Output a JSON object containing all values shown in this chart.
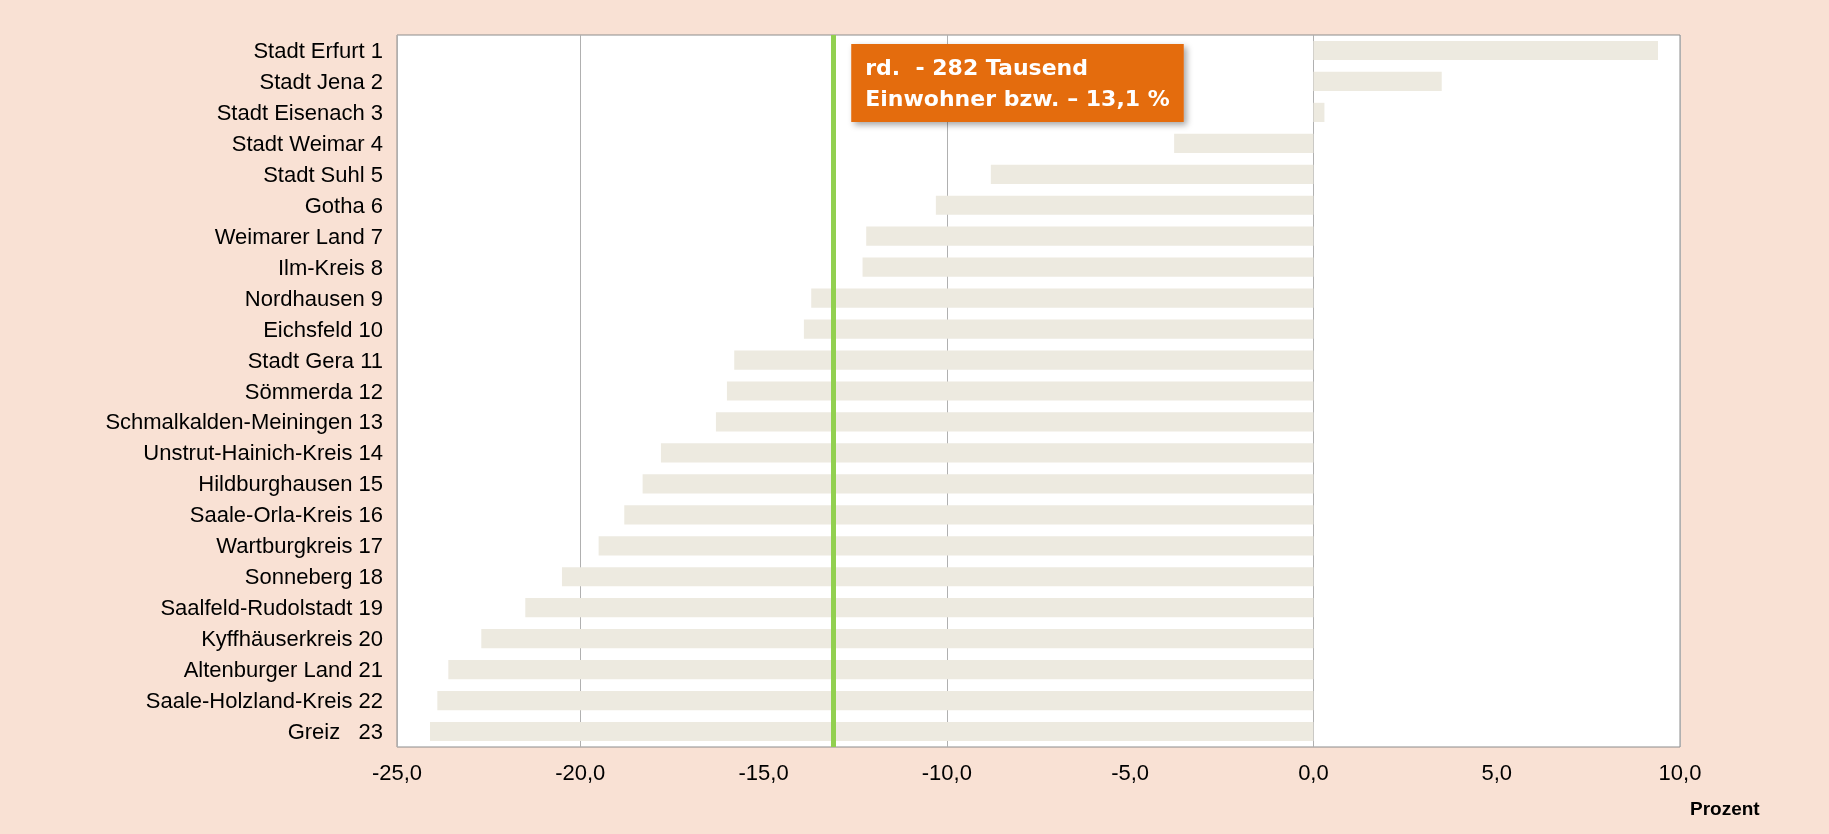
{
  "chart_data": {
    "type": "bar",
    "orientation": "horizontal",
    "categories": [
      "Stadt Erfurt 1",
      "Stadt Jena 2",
      "Stadt Eisenach 3",
      "Stadt Weimar 4",
      "Stadt Suhl 5",
      "Gotha 6",
      "Weimarer Land 7",
      "Ilm-Kreis 8",
      "Nordhausen 9",
      "Eichsfeld 10",
      "Stadt Gera 11",
      "Sömmerda 12",
      "Schmalkalden-Meiningen 13",
      "Unstrut-Hainich-Kreis 14",
      "Hildburghausen 15",
      "Saale-Orla-Kreis 16",
      "Wartburgkreis 17",
      "Sonneberg 18",
      "Saalfeld-Rudolstadt 19",
      "Kyffhäuserkreis 20",
      "Altenburger Land 21",
      "Saale-Holzland-Kreis 22",
      "Greiz   23"
    ],
    "values": [
      9.4,
      3.5,
      0.3,
      -3.8,
      -8.8,
      -10.3,
      -12.2,
      -12.3,
      -13.7,
      -13.9,
      -15.8,
      -16.0,
      -16.3,
      -17.8,
      -18.3,
      -18.8,
      -19.5,
      -20.5,
      -21.5,
      -22.7,
      -23.6,
      -23.9,
      -24.1
    ],
    "color": "#edeae0",
    "xlabel": "Prozent",
    "xlim": [
      -25,
      10
    ],
    "xticks": [
      {
        "value": -25,
        "label": "-25,0"
      },
      {
        "value": -20,
        "label": "-20,0"
      },
      {
        "value": -15,
        "label": "-15,0"
      },
      {
        "value": -10,
        "label": "-10,0"
      },
      {
        "value": -5,
        "label": "-5,0"
      },
      {
        "value": 0,
        "label": "0,0"
      },
      {
        "value": 5,
        "label": "5,0"
      },
      {
        "value": 10,
        "label": "10,0"
      }
    ],
    "grid": "x",
    "ref_lines": [
      {
        "axis": "x",
        "value": -13.1,
        "label": "rd.  - 282 Tausend\nEinwohner bzw. – 13,1 %",
        "color": "#92d050"
      }
    ]
  }
}
